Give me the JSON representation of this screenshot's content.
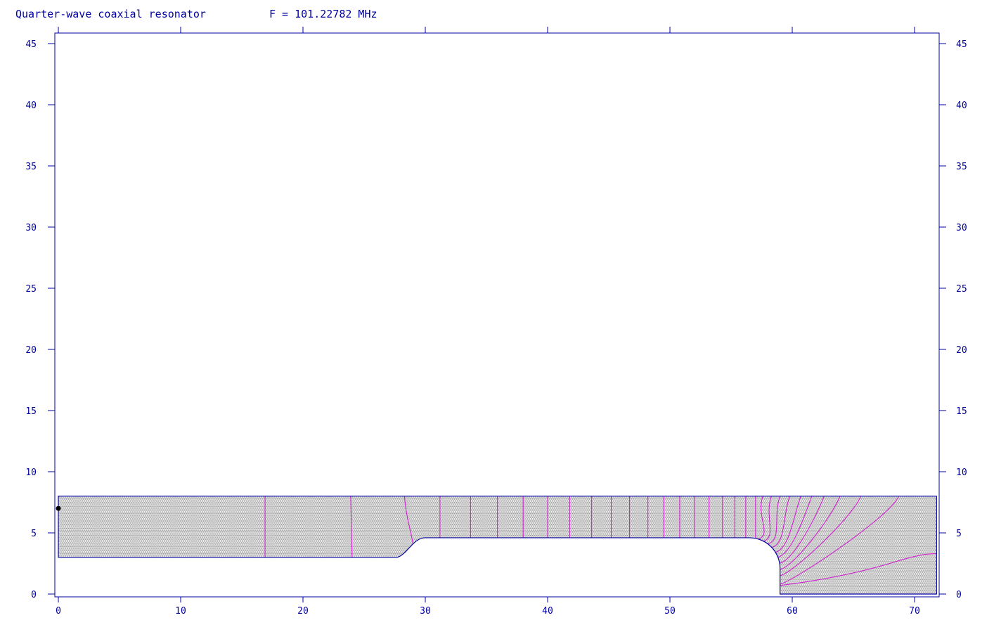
{
  "title": "Quarter-wave coaxial resonator",
  "frequency_label": "F = 101.22782 MHz",
  "colors": {
    "axis": "#0000a0",
    "text": "#0000a0",
    "field_lines": "#d020d0",
    "mesh_fill": "#d4d4d4",
    "mesh_line": "#9a9a9a",
    "boundary": "#0000a0",
    "marker": "#000000"
  },
  "chart_data": {
    "type": "field-plot",
    "title": "Quarter-wave coaxial resonator",
    "subtitle": "F = 101.22782 MHz",
    "xlabel": "",
    "ylabel": "",
    "xlim": [
      0,
      71.8
    ],
    "ylim": [
      0,
      45.8
    ],
    "x_ticks": [
      0,
      10,
      20,
      30,
      40,
      50,
      60,
      70
    ],
    "y_ticks": [
      0,
      5,
      10,
      15,
      20,
      25,
      30,
      35,
      40,
      45
    ],
    "x_tick_labels": [
      "0",
      "10",
      "20",
      "30",
      "40",
      "50",
      "60",
      "70"
    ],
    "y_tick_labels": [
      "0",
      "5",
      "10",
      "15",
      "20",
      "25",
      "30",
      "35",
      "40",
      "45"
    ],
    "grid": false,
    "geometry": {
      "outer_radius": 8.0,
      "inner_radius_left": 3.0,
      "inner_radius_right": 4.6,
      "step_x_start": 27.7,
      "step_x_end": 30.0,
      "inner_end_x": 59.0,
      "inner_end_round_start_x": 56.5,
      "cavity_end_x": 71.8
    },
    "marker_point": {
      "x": 0,
      "y": 7
    }
  }
}
